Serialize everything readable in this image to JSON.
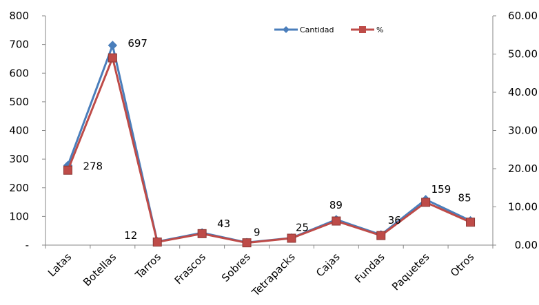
{
  "chart_data": {
    "type": "line",
    "categories": [
      "Latas",
      "Botellas",
      "Tarros",
      "Frascos",
      "Sobres",
      "Tetrapacks",
      "Cajas",
      "Fundas",
      "Paquetes",
      "Otros"
    ],
    "series": [
      {
        "name": "Cantidad",
        "axis": "left",
        "color": "#4a7ebb",
        "marker": "diamond",
        "values": [
          278,
          697,
          12,
          43,
          9,
          25,
          89,
          36,
          159,
          85
        ]
      },
      {
        "name": "%",
        "axis": "right",
        "color": "#be4b48",
        "marker": "square",
        "values": [
          19.6,
          49.0,
          0.8,
          3.0,
          0.6,
          1.8,
          6.3,
          2.5,
          11.2,
          6.0
        ]
      }
    ],
    "data_labels": [
      "278",
      "697",
      "12",
      "43",
      "9",
      "25",
      "89",
      "36",
      "159",
      "85"
    ],
    "y_left": {
      "ylim": [
        0,
        800
      ],
      "ticks": [
        "-",
        "100",
        "200",
        "300",
        "400",
        "500",
        "600",
        "700",
        "800"
      ]
    },
    "y_right": {
      "ylim": [
        0,
        60
      ],
      "ticks": [
        "0.00",
        "10.00",
        "20.00",
        "30.00",
        "40.00",
        "50.00",
        "60.00"
      ]
    },
    "legend": {
      "position": "top-right",
      "entries": [
        "Cantidad",
        "%"
      ]
    },
    "grid": false
  }
}
